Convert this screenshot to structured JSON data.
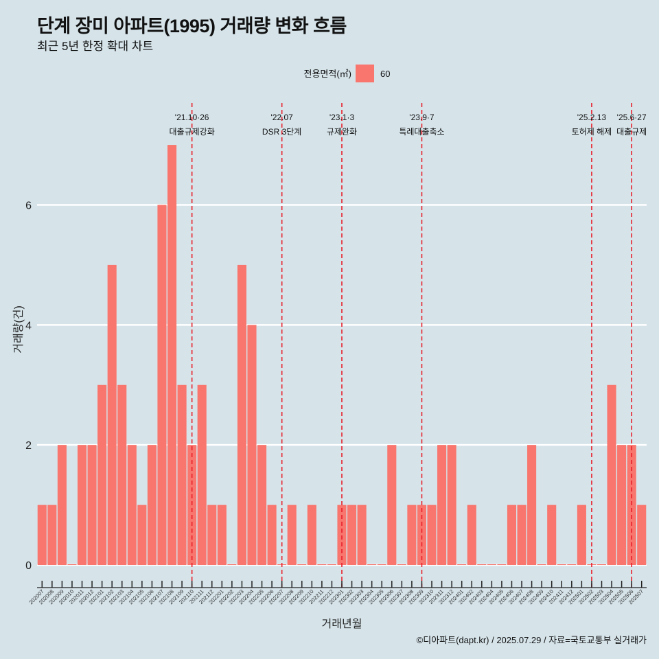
{
  "header": {
    "title": "단계 장미 아파트(1995) 거래량 변화 흐름",
    "subtitle": "최근 5년 한정 확대 차트"
  },
  "caption": "©디아파트(dapt.kr) / 2025.07.29 / 자료=국토교통부 실거래가",
  "colors": {
    "bar": "#f8766d",
    "event_line": "#e8202a",
    "background": "#d6e4ea",
    "grid": "#ffffff"
  },
  "chart_data": {
    "type": "bar",
    "xlabel": "거래년월",
    "ylabel": "거래량(건)",
    "ylim": [
      0,
      7.4
    ],
    "yticks": [
      0,
      2,
      4,
      6
    ],
    "legend": {
      "title": "전용면적(㎡)",
      "position": "top",
      "entries": [
        "60"
      ]
    },
    "categories": [
      "202007",
      "202008",
      "202009",
      "202010",
      "202011",
      "202012",
      "202101",
      "202102",
      "202103",
      "202104",
      "202105",
      "202106",
      "202107",
      "202108",
      "202109",
      "202110",
      "202111",
      "202112",
      "202201",
      "202202",
      "202203",
      "202204",
      "202205",
      "202206",
      "202207",
      "202208",
      "202209",
      "202210",
      "202211",
      "202212",
      "202301",
      "202302",
      "202303",
      "202304",
      "202305",
      "202306",
      "202307",
      "202308",
      "202309",
      "202310",
      "202311",
      "202312",
      "202401",
      "202402",
      "202403",
      "202404",
      "202405",
      "202406",
      "202407",
      "202408",
      "202409",
      "202410",
      "202411",
      "202412",
      "202501",
      "202502",
      "202503",
      "202504",
      "202505",
      "202506",
      "202507"
    ],
    "series": [
      {
        "name": "60",
        "values": [
          1,
          1,
          2,
          0,
          2,
          2,
          3,
          5,
          3,
          2,
          1,
          2,
          6,
          7,
          3,
          2,
          3,
          1,
          1,
          0,
          5,
          4,
          2,
          1,
          0,
          1,
          0,
          1,
          0,
          0,
          1,
          1,
          1,
          0,
          0,
          2,
          0,
          1,
          1,
          1,
          2,
          2,
          0,
          1,
          0,
          0,
          0,
          1,
          1,
          2,
          0,
          1,
          0,
          0,
          1,
          0,
          0,
          3,
          2,
          2,
          1
        ]
      }
    ],
    "annotations": [
      {
        "category": "202110",
        "date": "'21.10·26",
        "label": "대출규제강화"
      },
      {
        "category": "202207",
        "date": "'22.07",
        "label": "DSR 3단계"
      },
      {
        "category": "202301",
        "date": "'23.1·3",
        "label": "규제완화"
      },
      {
        "category": "202309",
        "date": "'23.9·7",
        "label": "특례대출축소"
      },
      {
        "category": "202502",
        "date": "'25.2.13",
        "label": "토허제 해제"
      },
      {
        "category": "202506",
        "date": "'25.6·27",
        "label": "대출규제"
      }
    ]
  }
}
